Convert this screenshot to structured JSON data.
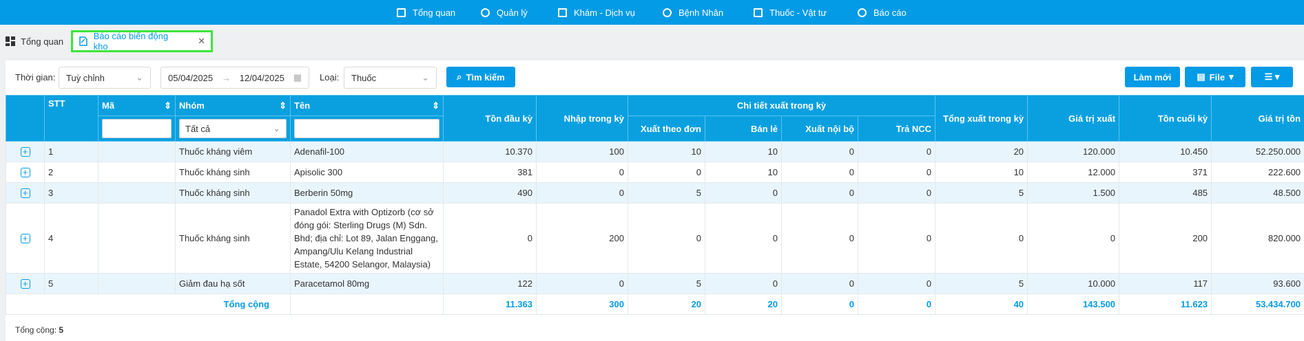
{
  "nav": [
    "Tổng quan",
    "Quản lý",
    "Khám - Dịch vụ",
    "Bệnh Nhân",
    "Thuốc - Vật tư",
    "Báo cáo"
  ],
  "tabs": [
    "Tổng quan",
    "Báo cáo biến động kho"
  ],
  "filters": {
    "time_label": "Thời gian:",
    "time_value": "Tuỳ chỉnh",
    "date_from": "05/04/2025",
    "date_to": "12/04/2025",
    "type_label": "Loại:",
    "type_value": "Thuốc",
    "search": "Tìm kiếm"
  },
  "buttons": [
    "Làm mới",
    "File"
  ],
  "table": {
    "columns": [
      "STT",
      "Mã",
      "Nhóm",
      "Tên",
      "Tồn đầu kỳ",
      "Nhập trong kỳ",
      "Tổng xuất trong kỳ",
      "Giá trị xuất",
      "Tồn cuối kỳ",
      "Giá trị tồn"
    ],
    "group_header": "Chi tiết xuất trong kỳ",
    "sub_columns": [
      "Xuất theo đơn",
      "Bán lẻ",
      "Xuất nội bộ",
      "Trả NCC"
    ],
    "group_filter": "Tất cả",
    "rows": [
      [
        "1",
        "Thuốc kháng viêm",
        "Adenafil-100",
        "10.370",
        "100",
        "10",
        "10",
        "0",
        "0",
        "20",
        "120.000",
        "10.450",
        "52.250.000"
      ],
      [
        "2",
        "Thuốc kháng sinh",
        "Apisolic 300",
        "381",
        "0",
        "0",
        "10",
        "0",
        "0",
        "10",
        "12.000",
        "371",
        "222.600"
      ],
      [
        "3",
        "Thuốc kháng sinh",
        "Berberin 50mg",
        "490",
        "0",
        "5",
        "0",
        "0",
        "0",
        "5",
        "1.500",
        "485",
        "48.500"
      ],
      [
        "4",
        "Thuốc kháng sinh",
        "Panadol Extra with Optizorb (cơ sở đóng gói: Sterling Drugs (M) Sdn. Bhd; địa chỉ: Lot 89, Jalan Enggang, Ampang/Ulu Kelang Industrial Estate, 54200 Selangor, Malaysia)",
        "0",
        "200",
        "0",
        "0",
        "0",
        "0",
        "0",
        "0",
        "200",
        "820.000"
      ],
      [
        "5",
        "Giảm đau hạ sốt",
        "Paracetamol 80mg",
        "122",
        "0",
        "5",
        "0",
        "0",
        "0",
        "5",
        "10.000",
        "117",
        "93.600"
      ]
    ],
    "total_label": "Tổng cộng",
    "totals": [
      "11.363",
      "300",
      "20",
      "20",
      "0",
      "0",
      "40",
      "143.500",
      "11.623",
      "53.434.700"
    ]
  },
  "footer": {
    "label": "Tổng cộng:",
    "count": "5"
  }
}
